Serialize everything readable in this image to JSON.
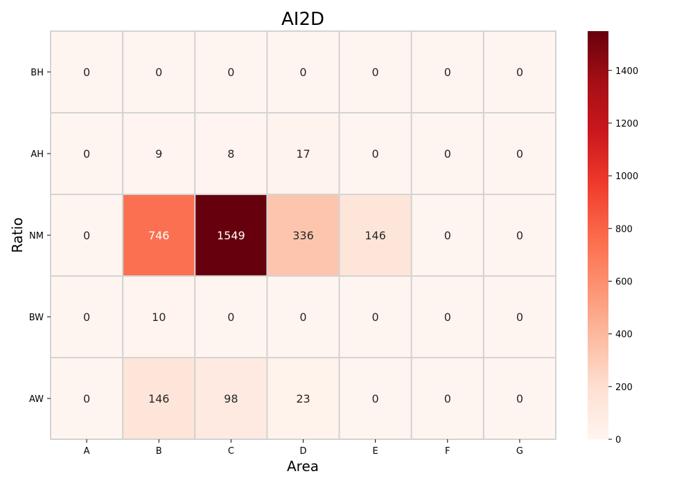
{
  "chart_data": {
    "type": "heatmap",
    "title": "AI2D",
    "xlabel": "Area",
    "ylabel": "Ratio",
    "x_categories": [
      "A",
      "B",
      "C",
      "D",
      "E",
      "F",
      "G"
    ],
    "y_categories": [
      "BH",
      "AH",
      "NM",
      "BW",
      "AW"
    ],
    "values": [
      [
        0,
        0,
        0,
        0,
        0,
        0,
        0
      ],
      [
        0,
        9,
        8,
        17,
        0,
        0,
        0
      ],
      [
        0,
        746,
        1549,
        336,
        146,
        0,
        0
      ],
      [
        0,
        10,
        0,
        0,
        0,
        0,
        0
      ],
      [
        0,
        146,
        98,
        23,
        0,
        0,
        0
      ]
    ],
    "colorbar": {
      "colormap": "Reds",
      "vmin": 0,
      "vmax": 1549,
      "ticks": [
        0,
        200,
        400,
        600,
        800,
        1000,
        1200,
        1400
      ]
    },
    "colors": {
      "cell_border": "#d3d3d3",
      "dark_text": "#262626",
      "light_text": "#ffffff"
    },
    "legend_position": "right (colorbar)",
    "grid": false
  }
}
